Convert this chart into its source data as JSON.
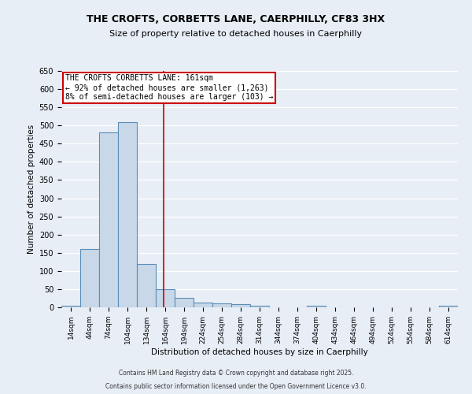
{
  "title_line1": "THE CROFTS, CORBETTS LANE, CAERPHILLY, CF83 3HX",
  "title_line2": "Size of property relative to detached houses in Caerphilly",
  "xlabel": "Distribution of detached houses by size in Caerphilly",
  "ylabel": "Number of detached properties",
  "bin_labels": [
    "14sqm",
    "44sqm",
    "74sqm",
    "104sqm",
    "134sqm",
    "164sqm",
    "194sqm",
    "224sqm",
    "254sqm",
    "284sqm",
    "314sqm",
    "344sqm",
    "374sqm",
    "404sqm",
    "434sqm",
    "464sqm",
    "494sqm",
    "524sqm",
    "554sqm",
    "584sqm",
    "614sqm"
  ],
  "bar_values": [
    5,
    160,
    480,
    510,
    120,
    50,
    25,
    13,
    10,
    8,
    5,
    0,
    0,
    5,
    0,
    0,
    0,
    0,
    0,
    0,
    5
  ],
  "bar_color": "#c8d8e8",
  "bar_edge_color": "#5b8db8",
  "bar_edge_width": 0.8,
  "background_color": "#e8eef6",
  "grid_color": "#ffffff",
  "vline_color": "#cc0000",
  "vline_label": "THE CROFTS CORBETTS LANE: 161sqm",
  "annotation_line2": "← 92% of detached houses are smaller (1,263)",
  "annotation_line3": "8% of semi-detached houses are larger (103) →",
  "annotation_box_color": "#ffffff",
  "annotation_box_edge": "#cc0000",
  "ylim": [
    0,
    650
  ],
  "yticks": [
    0,
    50,
    100,
    150,
    200,
    250,
    300,
    350,
    400,
    450,
    500,
    550,
    600,
    650
  ],
  "footer_line1": "Contains HM Land Registry data © Crown copyright and database right 2025.",
  "footer_line2": "Contains public sector information licensed under the Open Government Licence v3.0."
}
